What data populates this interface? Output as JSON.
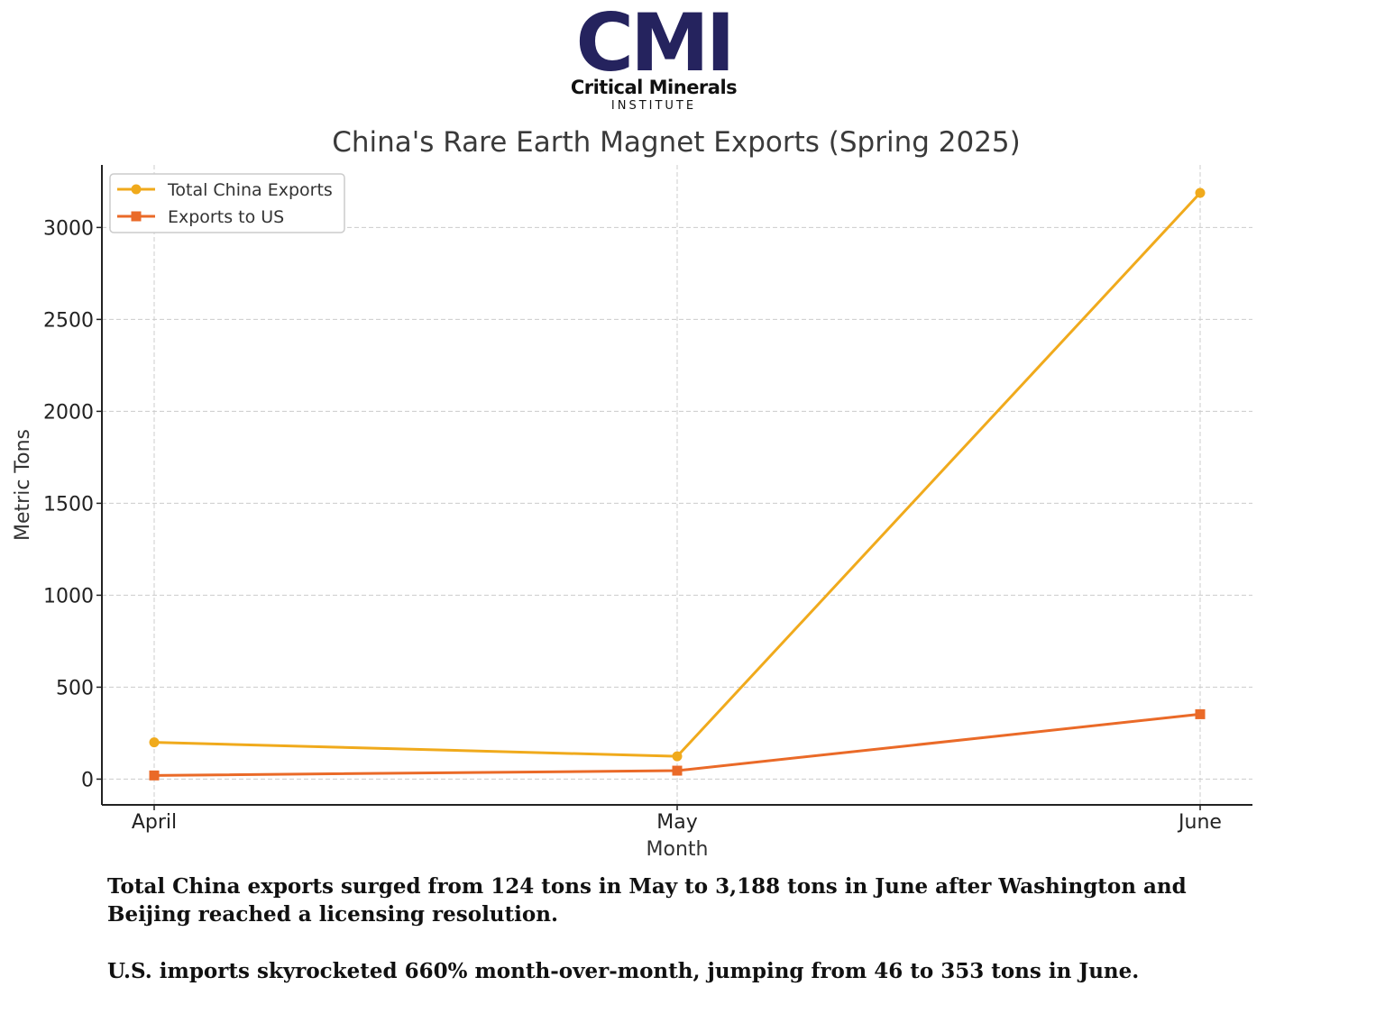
{
  "logo": {
    "mark": "CMI",
    "name": "Critical Minerals",
    "subtitle": "INSTITUTE",
    "color": "#25235e"
  },
  "chart_data": {
    "type": "line",
    "title": "China's Rare Earth Magnet Exports (Spring 2025)",
    "xlabel": "Month",
    "ylabel": "Metric Tons",
    "categories": [
      "April",
      "May",
      "June"
    ],
    "ylim": [
      -140,
      3340
    ],
    "yticks": [
      0,
      500,
      1000,
      1500,
      2000,
      2500,
      3000
    ],
    "grid": true,
    "legend_position": "top-left",
    "series": [
      {
        "name": "Total China Exports",
        "values": [
          200,
          124,
          3188
        ],
        "color": "#f0aa1c",
        "marker": "circle"
      },
      {
        "name": "Exports to US",
        "values": [
          20,
          46,
          353
        ],
        "color": "#ea6a28",
        "marker": "square"
      }
    ]
  },
  "captions": {
    "line1": "Total China exports surged from 124 tons in May to 3,188 tons in June after Washington and Beijing reached a licensing resolution.",
    "line2": "U.S. imports skyrocketed 660% month-over-month, jumping from 46 to 353 tons in June."
  }
}
